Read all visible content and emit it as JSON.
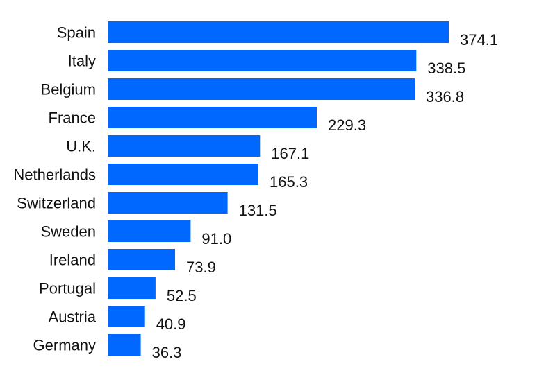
{
  "chart_data": {
    "type": "bar",
    "orientation": "horizontal",
    "categories": [
      "Spain",
      "Italy",
      "Belgium",
      "France",
      "U.K.",
      "Netherlands",
      "Switzerland",
      "Sweden",
      "Ireland",
      "Portugal",
      "Austria",
      "Germany"
    ],
    "values": [
      374.1,
      338.5,
      336.8,
      229.3,
      167.1,
      165.3,
      131.5,
      91.0,
      73.9,
      52.5,
      40.9,
      36.3
    ],
    "value_labels": [
      "374.1",
      "338.5",
      "336.8",
      "229.3",
      "167.1",
      "165.3",
      "131.5",
      "91.0",
      "73.9",
      "52.5",
      "40.9",
      "36.3"
    ],
    "bar_color": "#0068ff",
    "xlim": [
      0,
      374.1
    ],
    "grid": false,
    "legend": "none"
  }
}
